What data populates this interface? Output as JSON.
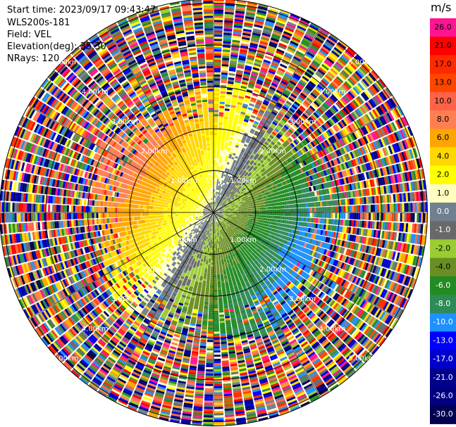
{
  "header": {
    "start_time": "Start time: 2023/09/17 09:43:47",
    "instrument": "WLS200s-181",
    "field": "Field: VEL",
    "elevation": "Elevation(deg): 35.30",
    "nrays": "NRays: 120"
  },
  "chart_data": {
    "type": "heatmap",
    "projection": "polar-ppi",
    "field": "VEL",
    "units": "m/s",
    "elevation_deg": 35.3,
    "n_rays": 120,
    "range_rings_km": [
      1.0,
      2.0,
      3.0,
      4.0,
      5.0
    ],
    "range_ring_labels": [
      "1.00km",
      "2.00km",
      "3.00km",
      "4.00km",
      "5.00km"
    ],
    "colorbar": {
      "label": "m/s",
      "ticks": [
        "26.0",
        "21.0",
        "17.0",
        "13.0",
        "10.0",
        "8.0",
        "6.0",
        "4.0",
        "2.0",
        "1.0",
        "0.0",
        "-1.0",
        "-2.0",
        "-4.0",
        "-6.0",
        "-8.0",
        "-10.0",
        "-13.0",
        "-17.0",
        "-21.0",
        "-26.0",
        "-30.0"
      ],
      "colors": [
        "#ff1493",
        "#ff0000",
        "#ff2a00",
        "#ff4500",
        "#ff6347",
        "#ff7f50",
        "#ffa500",
        "#ffd700",
        "#ffff00",
        "#ffffbf",
        "#708090",
        "#696969",
        "#9acd32",
        "#6b8e23",
        "#228b22",
        "#2e8b57",
        "#1e90ff",
        "#0000ff",
        "#0000cd",
        "#00008b",
        "#000080",
        "#000050"
      ]
    },
    "velocity_pattern": {
      "approaching_sector": "south-east (negative, green)",
      "receding_sector": "north-west (positive, yellow)",
      "noise_beyond_km": 3.0
    }
  }
}
